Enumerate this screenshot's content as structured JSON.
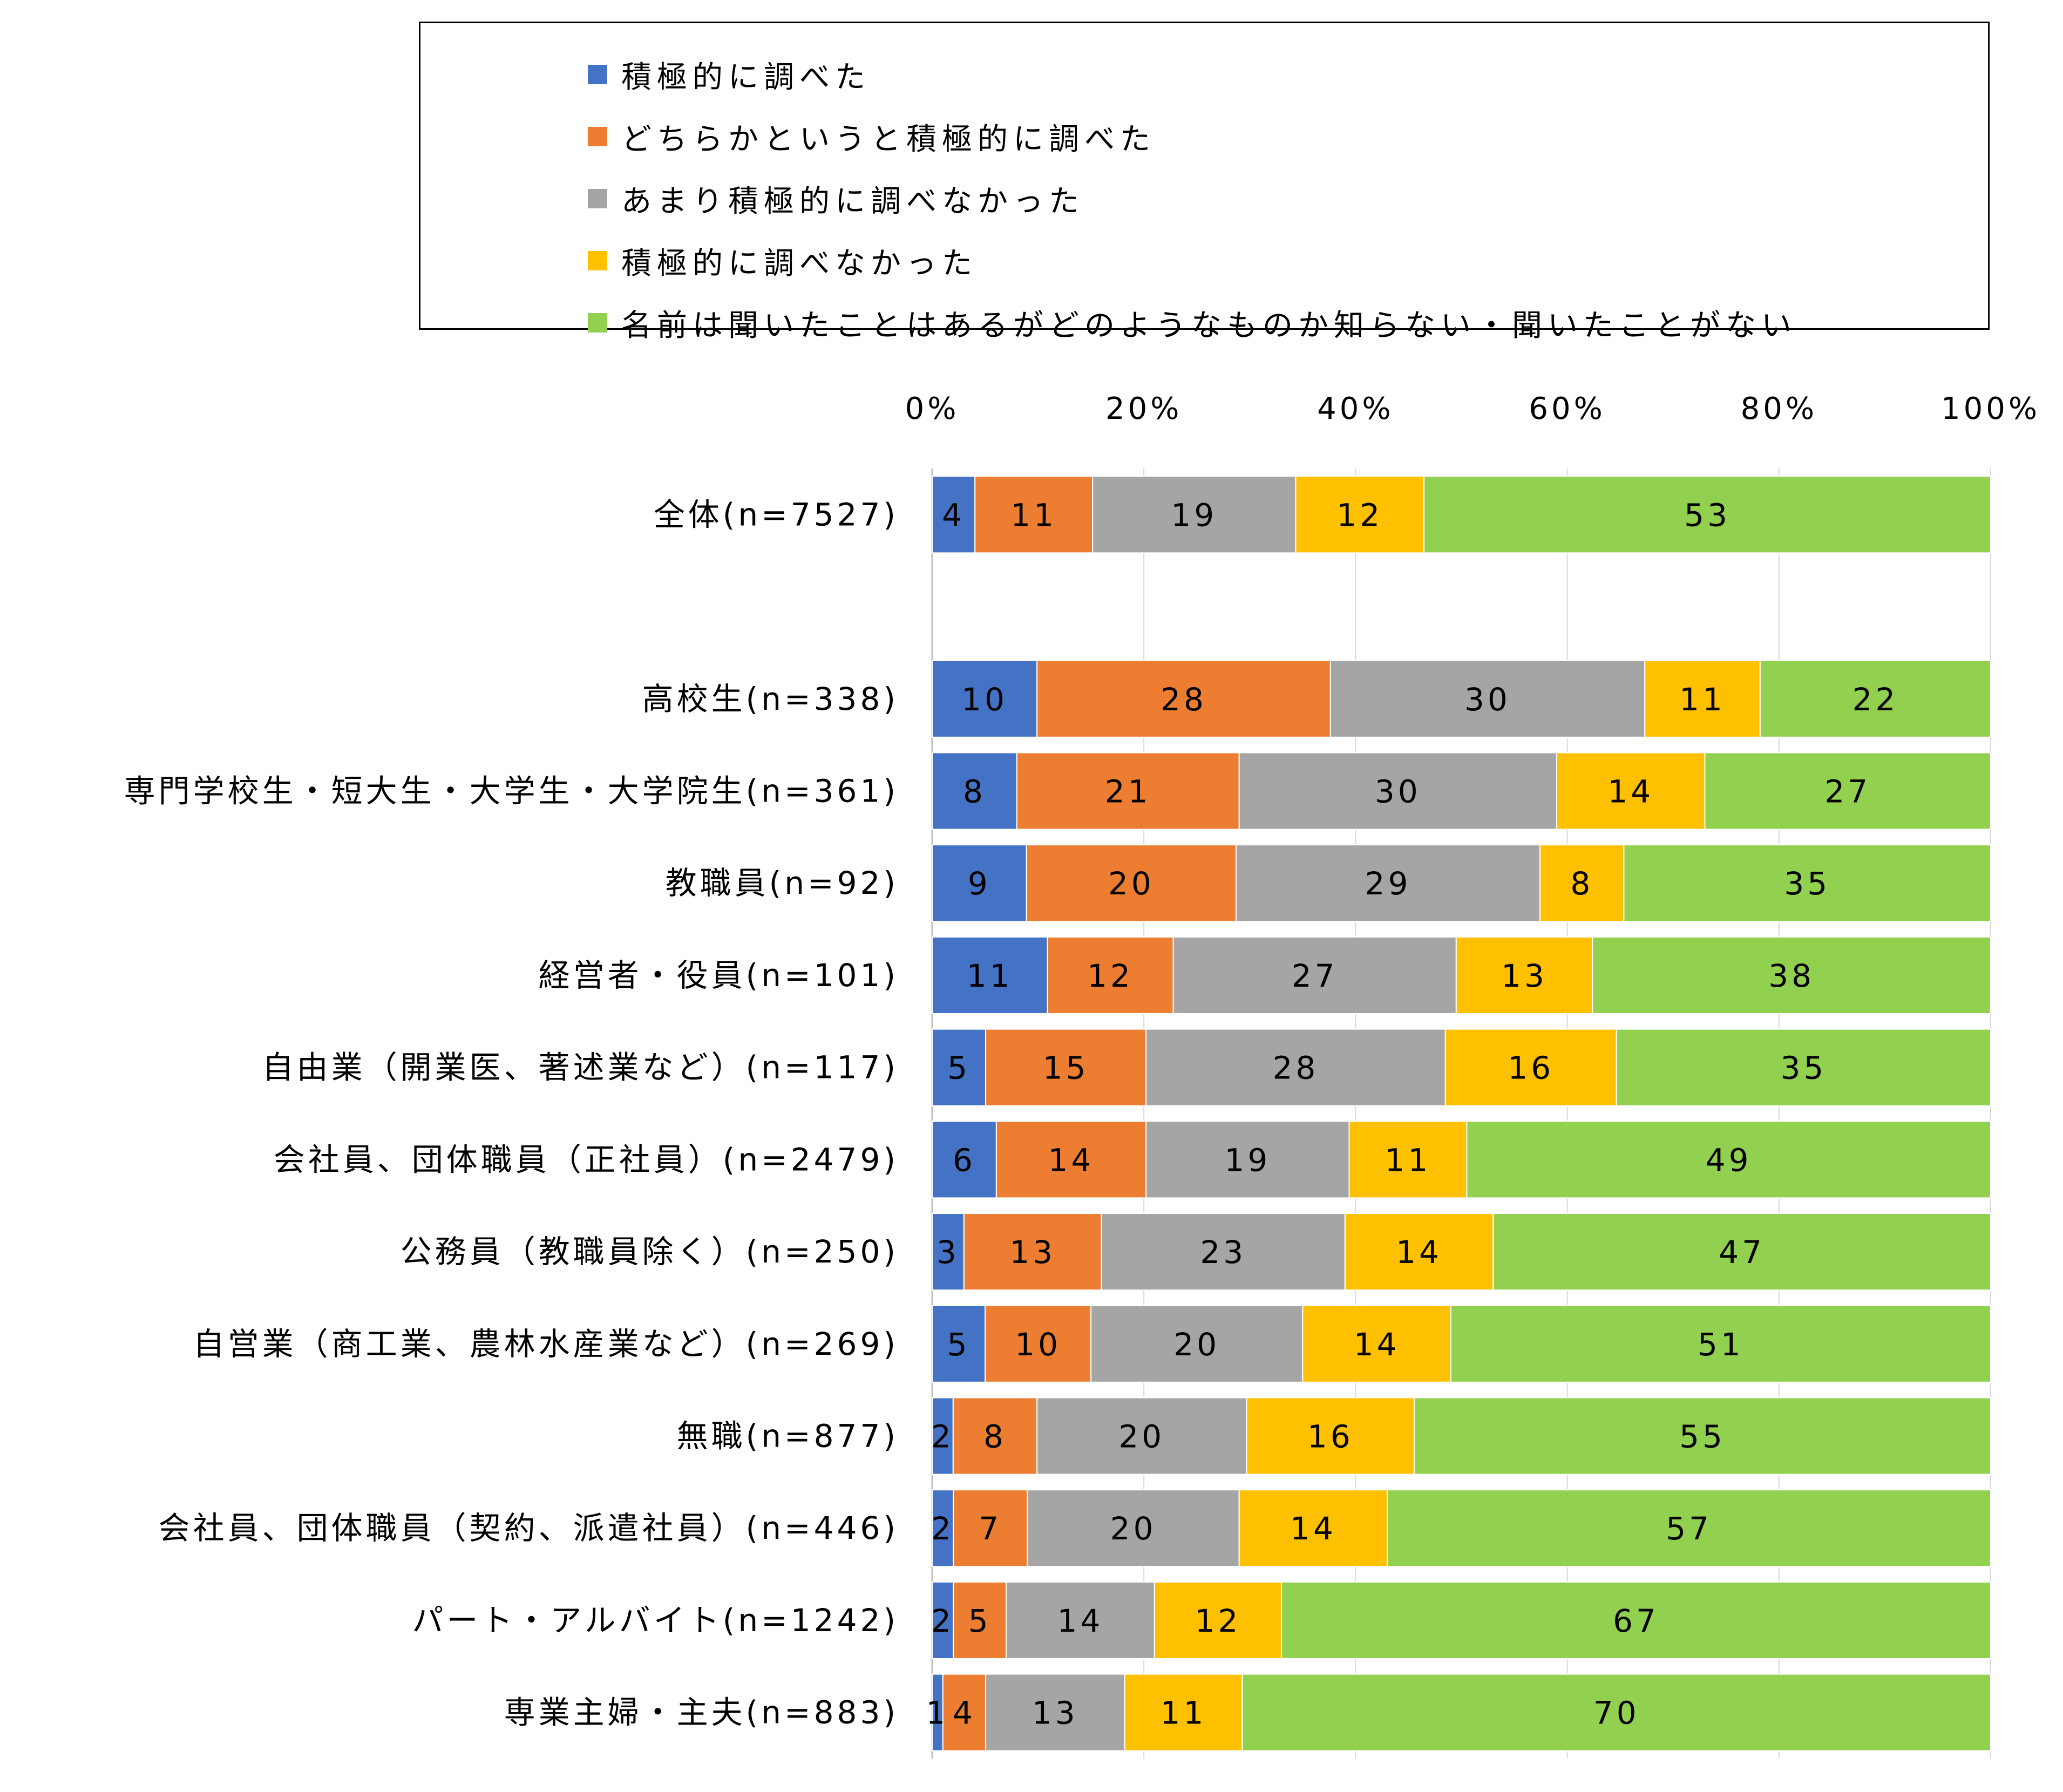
{
  "colors": {
    "background": "#ffffff",
    "gridline": "#d9d9d9",
    "axis_line": "#bfbfbf",
    "text": "#000000"
  },
  "chart_data": {
    "type": "bar",
    "orientation": "horizontal",
    "stacked": "percent",
    "title": "",
    "xlabel": "",
    "ylabel": "",
    "xlim": [
      0,
      100
    ],
    "x_ticks": [
      "0%",
      "20%",
      "40%",
      "60%",
      "80%",
      "100%"
    ],
    "grid": true,
    "legend_position": "top",
    "categories": [
      "全体(n=7527)",
      "",
      "高校生(n=338)",
      "専門学校生・短大生・大学生・大学院生(n=361)",
      "教職員(n=92)",
      "経営者・役員(n=101)",
      "自由業（開業医、著述業など）(n=117)",
      "会社員、団体職員（正社員）(n=2479)",
      "公務員（教職員除く）(n=250)",
      "自営業（商工業、農林水産業など）(n=269)",
      "無職(n=877)",
      "会社員、団体職員（契約、派遣社員）(n=446)",
      "パート・アルバイト(n=1242)",
      "専業主婦・主夫(n=883)"
    ],
    "series": [
      {
        "name": "積極的に調べた",
        "color": "#4472c4",
        "values": [
          4,
          null,
          10,
          8,
          9,
          11,
          5,
          6,
          3,
          5,
          2,
          2,
          2,
          1
        ]
      },
      {
        "name": "どちらかというと積極的に調べた",
        "color": "#ed7d31",
        "values": [
          11,
          null,
          28,
          21,
          20,
          12,
          15,
          14,
          13,
          10,
          8,
          7,
          5,
          4
        ]
      },
      {
        "name": "あまり積極的に調べなかった",
        "color": "#a5a5a5",
        "values": [
          19,
          null,
          30,
          30,
          29,
          27,
          28,
          19,
          23,
          20,
          20,
          20,
          14,
          13
        ]
      },
      {
        "name": "積極的に調べなかった",
        "color": "#ffc000",
        "values": [
          12,
          null,
          11,
          14,
          8,
          13,
          16,
          11,
          14,
          14,
          16,
          14,
          12,
          11
        ]
      },
      {
        "name": "名前は聞いたことはあるがどのようなものか知らない・聞いたことがない",
        "color": "#92d050",
        "values": [
          53,
          null,
          22,
          27,
          35,
          38,
          35,
          49,
          47,
          51,
          55,
          57,
          67,
          70
        ]
      }
    ]
  }
}
